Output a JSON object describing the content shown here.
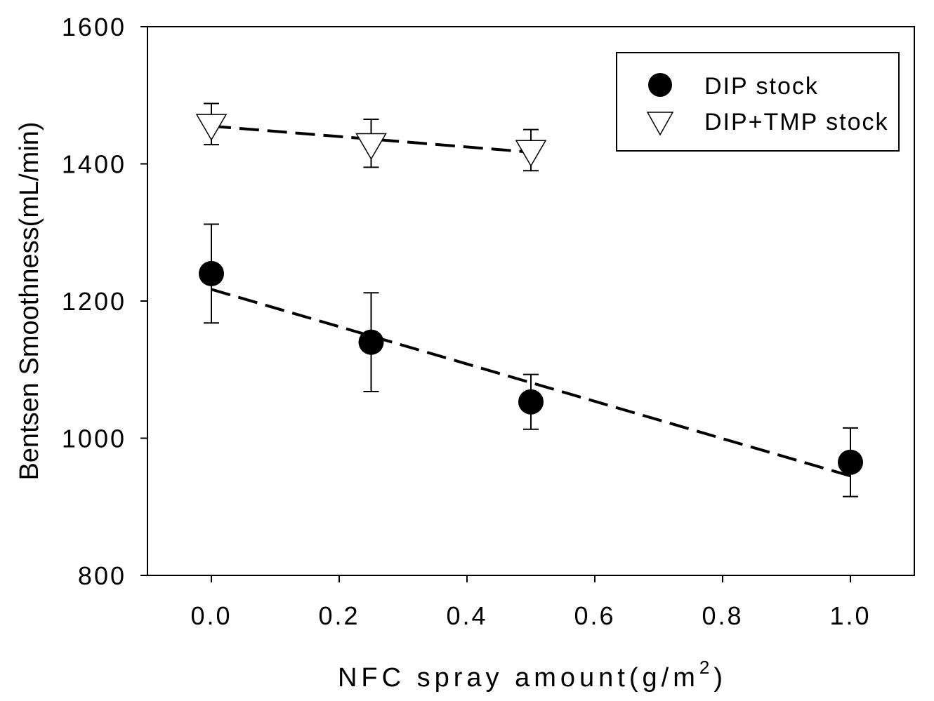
{
  "chart_data": {
    "type": "scatter",
    "title": "",
    "xlabel_main": "NFC spray amount(g/m",
    "xlabel_sup": "2",
    "xlabel_close": ")",
    "ylabel": "Bentsen Smoothness(mL/min)",
    "xlim": [
      -0.1,
      1.1
    ],
    "ylim": [
      800,
      1600
    ],
    "x_ticks": [
      "0.0",
      "0.2",
      "0.4",
      "0.6",
      "0.8",
      "1.0"
    ],
    "x_tick_values": [
      0.0,
      0.2,
      0.4,
      0.6,
      0.8,
      1.0
    ],
    "y_ticks": [
      "800",
      "1000",
      "1200",
      "1400",
      "1600"
    ],
    "y_tick_values": [
      800,
      1000,
      1200,
      1400,
      1600
    ],
    "grid": false,
    "legend_position": "top-right",
    "series": [
      {
        "name": "DIP stock",
        "marker": "filled-circle",
        "color": "#000000",
        "x": [
          0.0,
          0.25,
          0.5,
          1.0
        ],
        "y": [
          1240,
          1140,
          1053,
          965
        ],
        "err": [
          72,
          72,
          40,
          50
        ],
        "trend": {
          "x": [
            0.0,
            1.0
          ],
          "y": [
            1217,
            945
          ]
        }
      },
      {
        "name": "DIP+TMP stock",
        "marker": "open-triangle-down",
        "color": "#000000",
        "x": [
          0.0,
          0.25,
          0.5
        ],
        "y": [
          1458,
          1430,
          1420
        ],
        "err": [
          30,
          35,
          30
        ],
        "trend": {
          "x": [
            0.0,
            0.5
          ],
          "y": [
            1455,
            1417
          ]
        }
      }
    ]
  }
}
